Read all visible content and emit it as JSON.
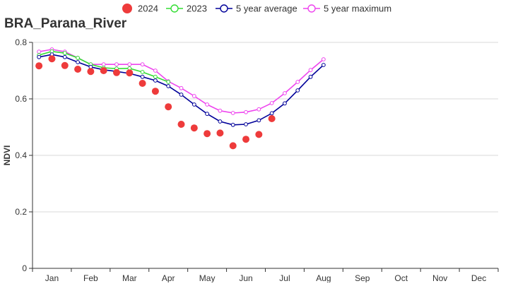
{
  "chart_data": {
    "type": "line",
    "title": "BRA_Parana_River",
    "ylabel": "NDVI",
    "xlabel": "",
    "ylim": [
      0,
      0.8
    ],
    "yticks": [
      0,
      0.2,
      0.4,
      0.6,
      0.8
    ],
    "ytick_labels": [
      "0",
      "0.2",
      "0.4",
      "0.6",
      "0.8"
    ],
    "month_labels": [
      "Jan",
      "Feb",
      "Mar",
      "Apr",
      "May",
      "Jun",
      "Jul",
      "Aug",
      "Sep",
      "Oct",
      "Nov",
      "Dec"
    ],
    "x_dekads": [
      1,
      2,
      3,
      4,
      5,
      6,
      7,
      8,
      9,
      10,
      11,
      12,
      13,
      14,
      15,
      16,
      17,
      18,
      19,
      20,
      21,
      22,
      23,
      24,
      25,
      26,
      27,
      28,
      29,
      30,
      31,
      32,
      33,
      34,
      35,
      36
    ],
    "grid": "horizontal",
    "legend_position": "top-center",
    "series": [
      {
        "name": "2024",
        "style": "dots",
        "color": "#ee3b3b",
        "x": [
          1,
          2,
          3,
          4,
          5,
          6,
          7,
          8,
          9,
          10,
          11,
          12,
          13,
          14,
          15,
          16,
          17,
          18,
          19,
          20
        ],
        "values": [
          0.717,
          0.742,
          0.718,
          0.705,
          0.697,
          0.7,
          0.693,
          0.692,
          0.655,
          0.627,
          0.572,
          0.51,
          0.497,
          0.477,
          0.479,
          0.434,
          0.457,
          0.474,
          0.53,
          null
        ]
      },
      {
        "name": "2023",
        "style": "line-markers",
        "color": "#33dd33",
        "x": [
          1,
          2,
          3,
          4,
          5,
          6,
          7,
          8,
          9,
          10,
          11
        ],
        "values": [
          0.755,
          0.768,
          0.762,
          0.745,
          0.722,
          0.71,
          0.707,
          0.708,
          0.695,
          0.678,
          0.66
        ]
      },
      {
        "name": "5 year average",
        "style": "line-markers",
        "color": "#000099",
        "x": [
          1,
          2,
          3,
          4,
          5,
          6,
          7,
          8,
          9,
          10,
          11,
          12,
          13,
          14,
          15,
          16,
          17,
          18,
          19,
          20,
          21,
          22,
          23
        ],
        "values": [
          0.748,
          0.757,
          0.748,
          0.73,
          0.713,
          0.703,
          0.697,
          0.69,
          0.678,
          0.665,
          0.645,
          0.615,
          0.58,
          0.547,
          0.52,
          0.508,
          0.51,
          0.524,
          0.549,
          0.584,
          0.63,
          0.678,
          0.72
        ]
      },
      {
        "name": "5 year maximum",
        "style": "line-markers",
        "color": "#ee44ee",
        "x": [
          1,
          2,
          3,
          4,
          5,
          6,
          7,
          8,
          9,
          10,
          11,
          12,
          13,
          14,
          15,
          16,
          17,
          18,
          19,
          20,
          21,
          22,
          23
        ],
        "values": [
          0.767,
          0.775,
          0.767,
          0.745,
          0.722,
          0.722,
          0.722,
          0.722,
          0.722,
          0.7,
          0.662,
          0.638,
          0.61,
          0.58,
          0.558,
          0.55,
          0.553,
          0.563,
          0.585,
          0.62,
          0.66,
          0.702,
          0.74
        ]
      }
    ]
  }
}
